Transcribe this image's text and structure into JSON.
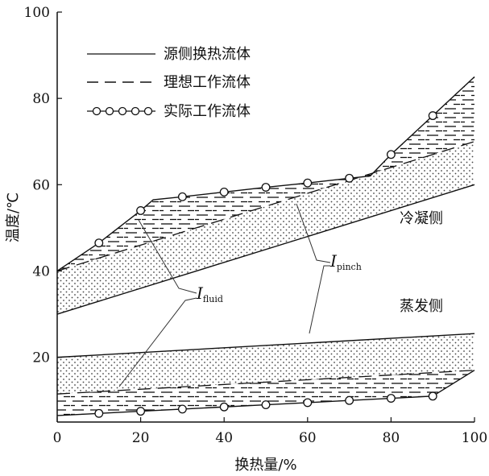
{
  "chart_data": {
    "type": "line",
    "xlabel": "换热量/%",
    "ylabel": "温度/℃",
    "xlim": [
      0,
      100
    ],
    "ylim": [
      5,
      100
    ],
    "x_ticks": [
      "0",
      "20",
      "40",
      "60",
      "80",
      "100"
    ],
    "y_ticks": [
      "20",
      "40",
      "60",
      "80",
      "100"
    ],
    "grid": false,
    "legend_position": "top-left",
    "legend": [
      "源侧换热流体",
      "理想工作流体",
      "实际工作流体"
    ],
    "series": [
      {
        "name": "源侧换热流体",
        "style": "solid",
        "x": [
          0,
          100
        ],
        "y": [
          30,
          60
        ]
      },
      {
        "name": "理想工作流体",
        "style": "dashed",
        "x": [
          0,
          100
        ],
        "y": [
          40,
          70
        ]
      },
      {
        "name": "实际工作流体",
        "style": "solid-circles",
        "x": [
          0,
          10,
          20,
          23,
          30,
          40,
          50,
          60,
          70,
          75,
          80,
          90,
          100
        ],
        "y": [
          40,
          46.5,
          54,
          56.5,
          57.2,
          58.3,
          59.4,
          60.4,
          61.5,
          62,
          67,
          76,
          85
        ],
        "markers_x": [
          10,
          20,
          30,
          40,
          50,
          60,
          70,
          80,
          90
        ],
        "markers_y": [
          46.5,
          54,
          57.2,
          58.3,
          59.4,
          60.4,
          61.5,
          67,
          76
        ]
      },
      {
        "name": "源侧换热流体",
        "style": "solid",
        "x": [
          0,
          100
        ],
        "y": [
          20,
          25.5
        ]
      },
      {
        "name": "理想工作流体",
        "style": "dashed",
        "x": [
          0,
          100
        ],
        "y": [
          11.5,
          17
        ]
      },
      {
        "name": "实际工作流体",
        "style": "solid-circles",
        "x": [
          0,
          10,
          20,
          30,
          40,
          50,
          60,
          70,
          80,
          90,
          100
        ],
        "y": [
          6.5,
          7,
          7.5,
          8,
          8.5,
          9,
          9.5,
          10,
          10.5,
          11,
          17
        ],
        "markers_x": [
          10,
          20,
          30,
          40,
          50,
          60,
          70,
          80,
          90
        ],
        "markers_y": [
          7,
          7.5,
          8,
          8.5,
          9,
          9.5,
          10,
          10.5,
          11
        ]
      }
    ],
    "annotations": {
      "condensing": "冷凝侧",
      "evaporating": "蒸发侧",
      "i_fluid_main": "I",
      "i_fluid_sub": "fluid",
      "i_pinch_main": "I",
      "i_pinch_sub": "pinch"
    }
  }
}
